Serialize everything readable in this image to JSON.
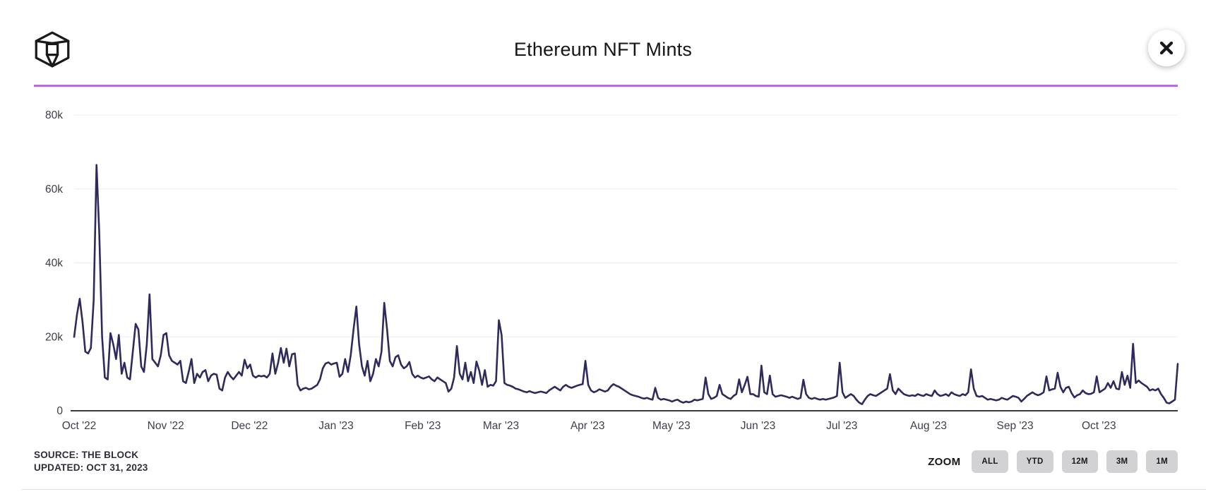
{
  "header": {
    "title": "Ethereum NFT Mints"
  },
  "footer": {
    "source_line1": "SOURCE: THE BLOCK",
    "source_line2": "UPDATED: OCT 31, 2023",
    "zoom_label": "ZOOM",
    "zoom_buttons": [
      "ALL",
      "YTD",
      "12M",
      "3M",
      "1M"
    ]
  },
  "colors": {
    "accent_purple": "#bd66e8",
    "line": "#2e2a5c",
    "grid": "#ededee",
    "axis": "#3a3a40",
    "tick_text": "#3e3e48"
  },
  "chart_data": {
    "type": "line",
    "title": "Ethereum NFT Mints",
    "series_name": "Ethereum NFT Mints",
    "x_start": "Oct 1, 2022",
    "x_end": "Oct 31, 2023",
    "x_unit": "day (daily data, day 0 = Oct 1 2022)",
    "y_unit": "mints (thousands)",
    "ylim": [
      0,
      80
    ],
    "grid": "horizontal-only",
    "legend": "none",
    "y_tick_values": [
      0,
      20,
      40,
      60,
      80
    ],
    "y_tick_labels": [
      "0",
      "20k",
      "40k",
      "60k",
      "80k"
    ],
    "x_tick_labels": [
      "Oct '22",
      "Nov '22",
      "Dec '22",
      "Jan '23",
      "Feb '23",
      "Mar '23",
      "Apr '23",
      "May '23",
      "Jun '23",
      "Jul '23",
      "Aug '23",
      "Sep '23",
      "Oct '23"
    ],
    "x_tick_days": [
      0,
      31,
      61,
      92,
      123,
      151,
      182,
      212,
      243,
      273,
      304,
      335,
      365
    ],
    "values_k": [
      20,
      26,
      30.3,
      24,
      16,
      15.5,
      17,
      30,
      66.5,
      48,
      20,
      9,
      8.5,
      21,
      18,
      14,
      20.5,
      10,
      13,
      9,
      8.5,
      16,
      23.5,
      22,
      12,
      10.5,
      18,
      31.5,
      14,
      13,
      12,
      15,
      20.5,
      21,
      15,
      13.5,
      13,
      12.5,
      13.5,
      8,
      7.5,
      10.5,
      14,
      7.5,
      10,
      9,
      10.5,
      11,
      8,
      9.5,
      10,
      9.8,
      6,
      5.5,
      9,
      10.5,
      9.3,
      8.5,
      9.5,
      10.5,
      9.5,
      13.8,
      11.5,
      12.5,
      9.5,
      9,
      9.5,
      9.3,
      9.5,
      9,
      10,
      15.5,
      10,
      13,
      17,
      13,
      16.8,
      12,
      15.3,
      15.5,
      7,
      5.5,
      6,
      6.2,
      5.8,
      6,
      6.5,
      7,
      8.5,
      11.5,
      12.8,
      13.1,
      12.5,
      12.8,
      13,
      9.2,
      10,
      14,
      10.5,
      15,
      22,
      28.2,
      18,
      12,
      9.5,
      13.5,
      8,
      10,
      14,
      12,
      16,
      29.2,
      22,
      13.5,
      12,
      14.5,
      15,
      12.5,
      11.5,
      12,
      13.2,
      10,
      9,
      9.5,
      9,
      8.7,
      9,
      9.3,
      8.5,
      8,
      9,
      8.5,
      8,
      7.5,
      5.2,
      6,
      9,
      17.5,
      10,
      8.5,
      13,
      8,
      10.5,
      7.5,
      13.3,
      10.8,
      7,
      11,
      6.5,
      7,
      6.8,
      8,
      24.5,
      20.5,
      7.5,
      7,
      6.8,
      6.5,
      6,
      5.8,
      5.5,
      5.2,
      5,
      5.3,
      5,
      4.8,
      5,
      5.2,
      5,
      4.8,
      5.5,
      6,
      6.5,
      6,
      5.5,
      6.5,
      7,
      6.5,
      6.2,
      6.5,
      6.8,
      7,
      7.2,
      13.5,
      7,
      5.5,
      5,
      5.3,
      5.8,
      5.5,
      5.2,
      5.5,
      6.5,
      7.2,
      6.8,
      6.5,
      6,
      5.5,
      5,
      4.5,
      4.2,
      4,
      3.8,
      3.5,
      3.3,
      3.5,
      3.2,
      3,
      6.2,
      3.5,
      3,
      3.2,
      3,
      2.8,
      2.5,
      2.8,
      3,
      2.5,
      2.2,
      2.5,
      2.3,
      2.5,
      3,
      2.8,
      3,
      3.2,
      9,
      4.5,
      3.2,
      3.5,
      4,
      7,
      4.5,
      4,
      3.5,
      3.2,
      4,
      4.5,
      8.5,
      5,
      7,
      9.2,
      4.5,
      4.5,
      4,
      3.8,
      12.2,
      5,
      4.5,
      9.5,
      4.5,
      3.8,
      4,
      4.2,
      4,
      3.8,
      3.5,
      3.8,
      3.5,
      3.2,
      3.5,
      8.4,
      4.5,
      3.5,
      3.2,
      3.5,
      3.2,
      3,
      3.2,
      3,
      3.2,
      3.4,
      3.6,
      4,
      13,
      5,
      3.5,
      4,
      4.5,
      4,
      3,
      2.2,
      1.8,
      3,
      4,
      4.5,
      4.2,
      4,
      4.5,
      5,
      5.5,
      6,
      9.9,
      5.5,
      4.5,
      6,
      5.2,
      4.5,
      4.2,
      4,
      4.2,
      4,
      4.5,
      4.2,
      4,
      4.5,
      4.2,
      4,
      5.5,
      4.5,
      4,
      4.2,
      4.5,
      4,
      5,
      4.5,
      4.2,
      4,
      4.5,
      4.2,
      5,
      11.2,
      6,
      4,
      3.8,
      4,
      3.5,
      3,
      3.2,
      3,
      2.8,
      3,
      3.5,
      3.2,
      3,
      3.5,
      4,
      3.8,
      3.5,
      2.5,
      3.2,
      4,
      4.5,
      5,
      4.5,
      4.2,
      4.5,
      5,
      9.3,
      5.5,
      5.8,
      6,
      10.3,
      6.5,
      5,
      6.2,
      6.5,
      4.8,
      3.6,
      4.2,
      4.5,
      5.5,
      4.8,
      4.5,
      4.6,
      5,
      9.3,
      5,
      5.5,
      6,
      7.5,
      6.2,
      8,
      6,
      5.8,
      10.5,
      7,
      9.5,
      6.2,
      18.1,
      7.5,
      8.2,
      7.5,
      7,
      6.5,
      5.5,
      5.8,
      5.5,
      6,
      4.5,
      3.5,
      2.2,
      2,
      2.5,
      3,
      12.7
    ]
  }
}
